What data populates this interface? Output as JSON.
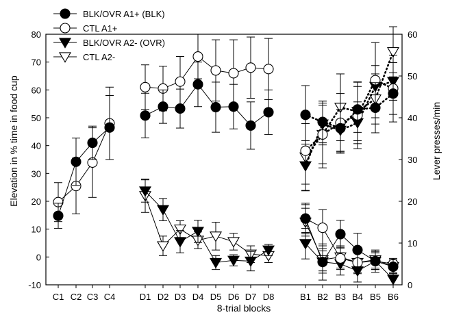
{
  "chart_data": {
    "type": "line",
    "xlabel": "8-trial blocks",
    "ylabel_left": "Elevation in % time in food cup",
    "ylabel_right": "Lever presses/min",
    "ylim_left": [
      -10,
      80
    ],
    "ylim_right": [
      0,
      60
    ],
    "yticks_left": [
      -10,
      0,
      10,
      20,
      30,
      40,
      50,
      60,
      70,
      80
    ],
    "yticks_right": [
      0,
      10,
      20,
      30,
      40,
      50,
      60
    ],
    "legend": "top-left",
    "grid": false,
    "blocks": [
      {
        "name": "C",
        "categories": [
          "C1",
          "C2",
          "C3",
          "C4"
        ]
      },
      {
        "name": "D",
        "categories": [
          "D1",
          "D2",
          "D3",
          "D4",
          "D5",
          "D6",
          "D7",
          "D8"
        ]
      },
      {
        "name": "B",
        "categories": [
          "B1",
          "B2",
          "B3",
          "B4",
          "B5",
          "B6"
        ]
      }
    ],
    "series": [
      {
        "name": "BLK/OVR A1+ (BLK)",
        "marker": "circle-filled",
        "segments": [
          {
            "block": "C",
            "axis": "left",
            "style": "solid",
            "values": [
              14.8,
              34.2,
              41.0,
              46.5
            ],
            "errors": [
              4.5,
              8.5,
              6.0,
              11.5
            ]
          },
          {
            "block": "D",
            "axis": "left",
            "style": "solid",
            "values": [
              50.8,
              54.0,
              53.3,
              62.0,
              53.8,
              54.0,
              47.2,
              52.0
            ],
            "errors": [
              8.0,
              6.0,
              7.0,
              8.0,
              9.0,
              8.0,
              8.5,
              8.0
            ]
          },
          {
            "block": "B",
            "axis": "right",
            "style": "dotted",
            "values": [
              40.7,
              39.0,
              37.5,
              42.0,
              42.4,
              45.8
            ],
            "errors": [
              7.0,
              5.0,
              6.0,
              5.5,
              6.0,
              5.0
            ]
          }
        ]
      },
      {
        "name": "CTL A1+",
        "marker": "circle-open",
        "segments": [
          {
            "block": "C",
            "axis": "left",
            "style": "solid",
            "values": [
              19.7,
              25.5,
              33.9,
              48.0
            ],
            "errors": [
              7.0,
              10.0,
              12.5,
              13.0
            ]
          },
          {
            "block": "D",
            "axis": "left",
            "style": "solid",
            "values": [
              61.0,
              60.5,
              63.0,
              72.0,
              67.0,
              66.0,
              68.0,
              67.5
            ],
            "errors": [
              8.0,
              8.0,
              9.0,
              8.0,
              11.0,
              12.0,
              11.0,
              11.0
            ]
          },
          {
            "block": "B",
            "axis": "right",
            "style": "dotted",
            "values": [
              32.1,
              36.0,
              38.8,
              40.6,
              49.0,
              47.0
            ],
            "errors": [
              8.0,
              7.0,
              7.0,
              8.0,
              9.0,
              8.0
            ]
          }
        ]
      },
      {
        "name": "BLK/OVR A2- (OVR)",
        "marker": "triangle-down-filled",
        "segments": [
          {
            "block": "D",
            "axis": "left",
            "style": "solid",
            "values": [
              23.7,
              17.0,
              5.5,
              9.2,
              -2.0,
              -1.2,
              -1.5,
              2.5
            ],
            "errors": [
              4.0,
              4.0,
              4.0,
              4.0,
              2.5,
              2.0,
              3.5,
              2.0
            ]
          },
          {
            "block": "B",
            "axis": "right",
            "style": "dotted",
            "values": [
              28.5,
              38.5,
              37.0,
              38.8,
              47.5,
              48.7
            ],
            "errors": [
              6.0,
              5.0,
              5.0,
              5.0,
              5.0,
              4.5
            ]
          }
        ]
      },
      {
        "name": "CTL A2-",
        "marker": "triangle-down-open",
        "segments": [
          {
            "block": "D",
            "axis": "left",
            "style": "solid",
            "values": [
              22.0,
              4.0,
              10.0,
              6.0,
              7.5,
              5.5,
              1.0,
              0.5
            ],
            "errors": [
              6.0,
              3.5,
              3.0,
              3.0,
              5.0,
              3.0,
              3.0,
              2.5
            ]
          },
          {
            "block": "B",
            "axis": "right",
            "style": "dotted",
            "values": [
              30.6,
              36.0,
              42.5,
              41.5,
              44.5,
              55.8
            ],
            "errors": [
              8.0,
              8.0,
              8.0,
              7.0,
              6.0,
              6.0
            ]
          }
        ]
      },
      {
        "name": "BLK/OVR A1+ (BLK) B-left",
        "marker": "circle-filled",
        "unlabeled": true,
        "segments": [
          {
            "block": "B",
            "axis": "left",
            "style": "solid",
            "values": [
              13.8,
              -1.8,
              8.2,
              2.5,
              -1.5,
              -3.5
            ],
            "errors": [
              5.5,
              6.5,
              5.0,
              6.0,
              4.0,
              2.5
            ]
          }
        ]
      },
      {
        "name": "CTL A1+ B-left",
        "marker": "circle-open",
        "unlabeled": true,
        "segments": [
          {
            "block": "B",
            "axis": "left",
            "style": "solid",
            "values": [
              13.8,
              10.5,
              -0.5,
              -2.0,
              -1.5,
              -2.5
            ],
            "errors": [
              5.0,
              6.5,
              4.0,
              4.0,
              3.0,
              2.0
            ]
          }
        ]
      },
      {
        "name": "BLK/OVR A2- (OVR) B-left",
        "marker": "triangle-down-filled",
        "unlabeled": true,
        "segments": [
          {
            "block": "B",
            "axis": "left",
            "style": "solid",
            "values": [
              4.8,
              -1.8,
              -2.5,
              -5.0,
              -1.5,
              -8.0
            ],
            "errors": [
              5.5,
              4.0,
              4.0,
              4.0,
              3.0,
              2.0
            ]
          }
        ]
      },
      {
        "name": "CTL A2- B-left",
        "marker": "triangle-down-open",
        "unlabeled": true,
        "segments": [
          {
            "block": "B",
            "axis": "left",
            "style": "solid",
            "values": [
              12.5,
              -1.0,
              0.0,
              -2.0,
              -1.0,
              -3.5
            ],
            "errors": [
              5.0,
              4.0,
              4.0,
              3.5,
              3.0,
              2.0
            ]
          }
        ]
      }
    ]
  }
}
